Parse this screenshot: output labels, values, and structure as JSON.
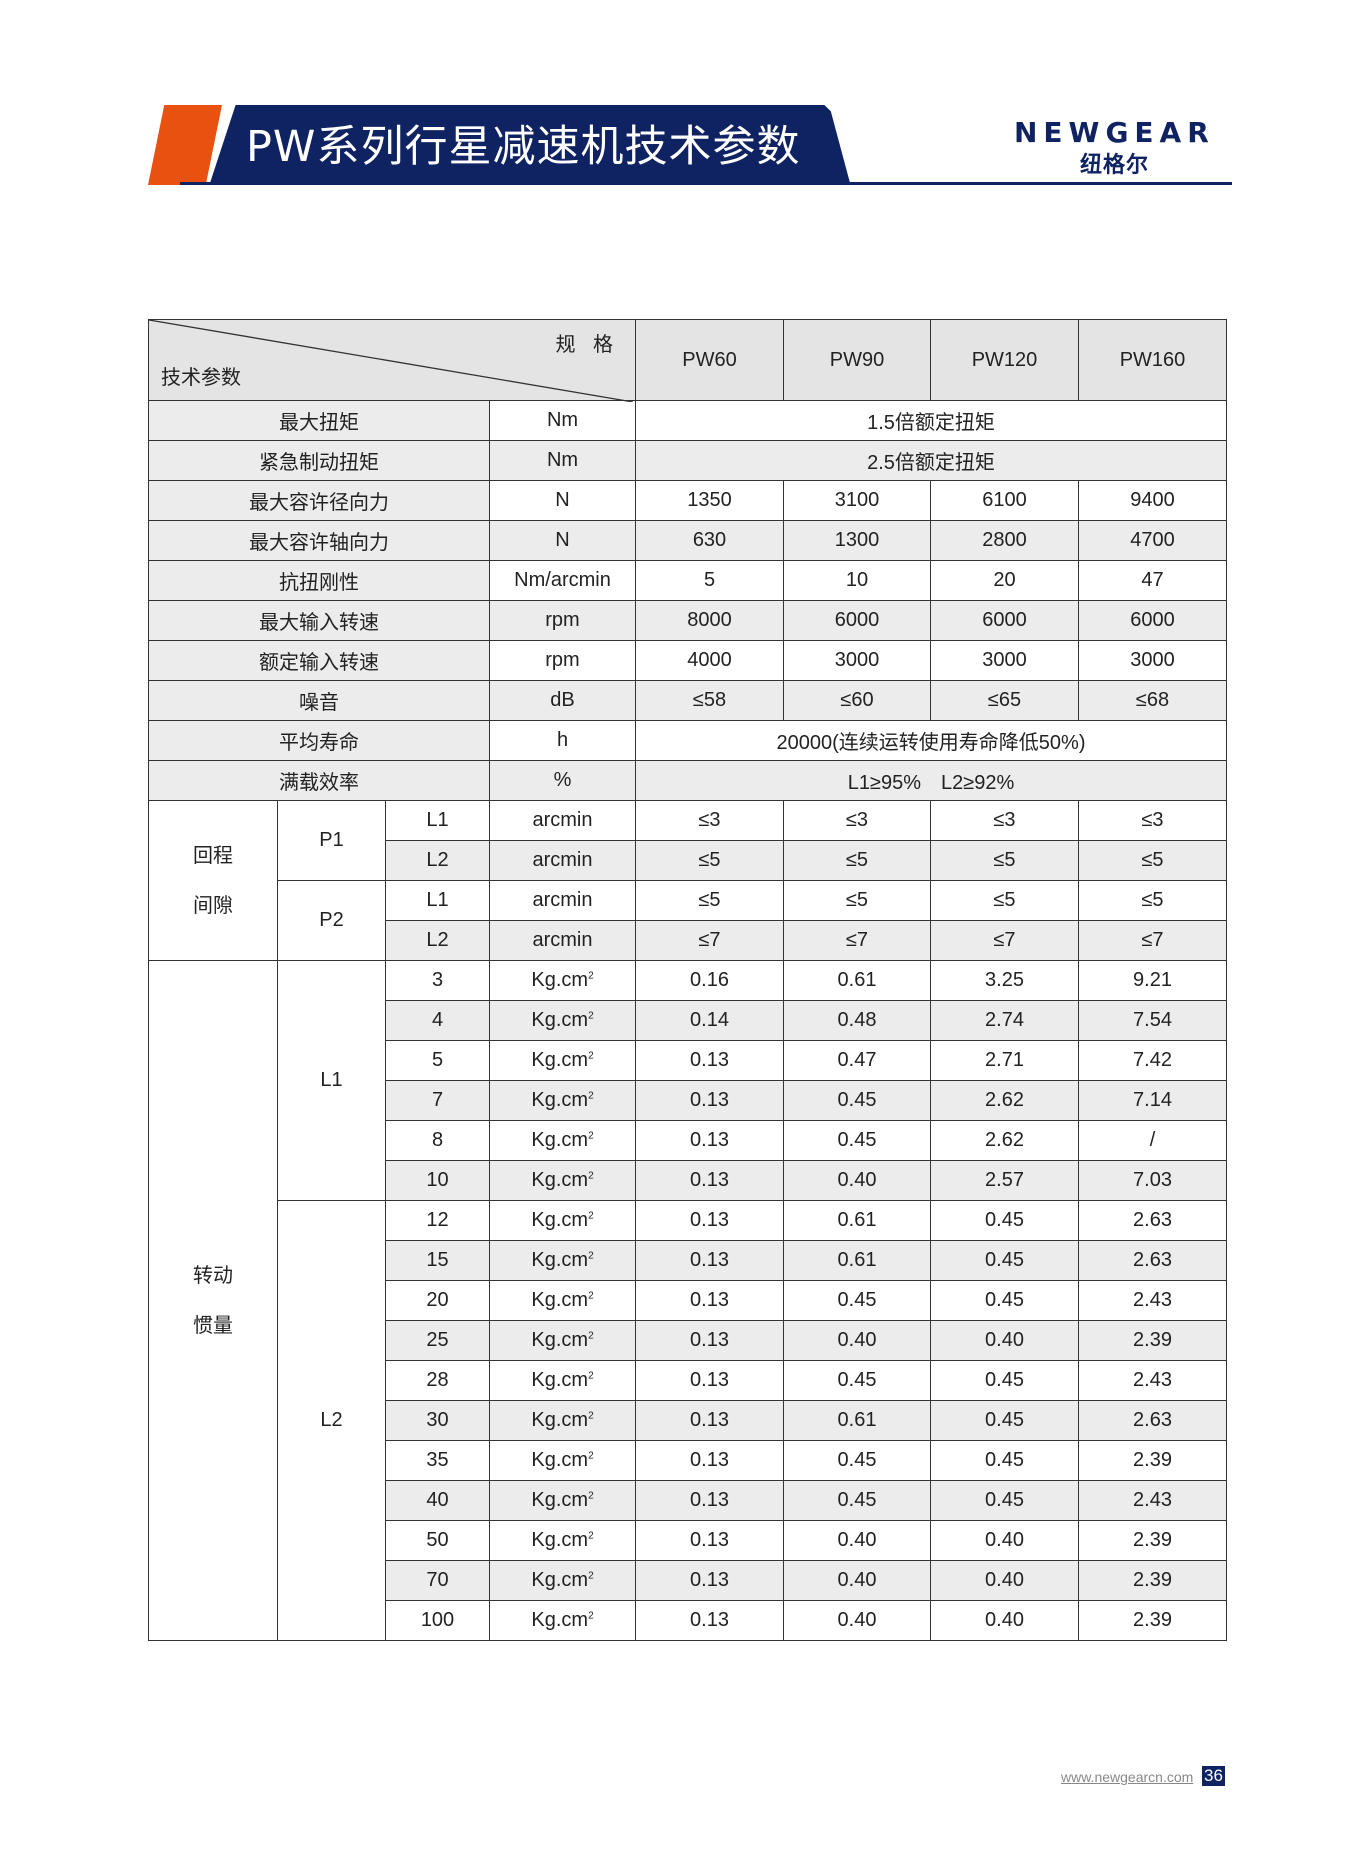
{
  "header": {
    "title": "PW系列行星减速机技术参数",
    "logo_en": "NEWGEAR",
    "logo_cn": "纽格尔",
    "accent": "#e8510f",
    "brand": "#0f2262"
  },
  "table": {
    "corner_top": "规 格",
    "corner_bottom": "技术参数",
    "models": [
      "PW60",
      "PW90",
      "PW120",
      "PW160"
    ],
    "general_rows": [
      {
        "label": "最大扭矩",
        "unit": "Nm",
        "merged": "1.5倍额定扭矩"
      },
      {
        "label": "紧急制动扭矩",
        "unit": "Nm",
        "merged": "2.5倍额定扭矩"
      },
      {
        "label": "最大容许径向力",
        "unit": "N",
        "values": [
          "1350",
          "3100",
          "6100",
          "9400"
        ]
      },
      {
        "label": "最大容许轴向力",
        "unit": "N",
        "values": [
          "630",
          "1300",
          "2800",
          "4700"
        ]
      },
      {
        "label": "抗扭刚性",
        "unit": "Nm/arcmin",
        "values": [
          "5",
          "10",
          "20",
          "47"
        ]
      },
      {
        "label": "最大输入转速",
        "unit": "rpm",
        "values": [
          "8000",
          "6000",
          "6000",
          "6000"
        ]
      },
      {
        "label": "额定输入转速",
        "unit": "rpm",
        "values": [
          "4000",
          "3000",
          "3000",
          "3000"
        ]
      },
      {
        "label": "噪音",
        "unit": "dB",
        "values": [
          "≤58",
          "≤60",
          "≤65",
          "≤68"
        ]
      },
      {
        "label": "平均寿命",
        "unit": "h",
        "merged": "20000(连续运转使用寿命降低50%)"
      },
      {
        "label": "满载效率",
        "unit": "%",
        "merged": "L1≥95%　L2≥92%"
      }
    ],
    "backlash": {
      "label_line1": "回程",
      "label_line2": "间隙",
      "groups": [
        {
          "name": "P1",
          "rows": [
            {
              "stage": "L1",
              "unit": "arcmin",
              "values": [
                "≤3",
                "≤3",
                "≤3",
                "≤3"
              ]
            },
            {
              "stage": "L2",
              "unit": "arcmin",
              "values": [
                "≤5",
                "≤5",
                "≤5",
                "≤5"
              ]
            }
          ]
        },
        {
          "name": "P2",
          "rows": [
            {
              "stage": "L1",
              "unit": "arcmin",
              "values": [
                "≤5",
                "≤5",
                "≤5",
                "≤5"
              ]
            },
            {
              "stage": "L2",
              "unit": "arcmin",
              "values": [
                "≤7",
                "≤7",
                "≤7",
                "≤7"
              ]
            }
          ]
        }
      ]
    },
    "inertia": {
      "label_line1": "转动",
      "label_line2": "惯量",
      "unit": "Kg.cm",
      "unit_sup": "2",
      "groups": [
        {
          "name": "L1",
          "rows": [
            {
              "ratio": "3",
              "values": [
                "0.16",
                "0.61",
                "3.25",
                "9.21"
              ]
            },
            {
              "ratio": "4",
              "values": [
                "0.14",
                "0.48",
                "2.74",
                "7.54"
              ]
            },
            {
              "ratio": "5",
              "values": [
                "0.13",
                "0.47",
                "2.71",
                "7.42"
              ]
            },
            {
              "ratio": "7",
              "values": [
                "0.13",
                "0.45",
                "2.62",
                "7.14"
              ]
            },
            {
              "ratio": "8",
              "values": [
                "0.13",
                "0.45",
                "2.62",
                "/"
              ]
            },
            {
              "ratio": "10",
              "values": [
                "0.13",
                "0.40",
                "2.57",
                "7.03"
              ]
            }
          ]
        },
        {
          "name": "L2",
          "rows": [
            {
              "ratio": "12",
              "values": [
                "0.13",
                "0.61",
                "0.45",
                "2.63"
              ]
            },
            {
              "ratio": "15",
              "values": [
                "0.13",
                "0.61",
                "0.45",
                "2.63"
              ]
            },
            {
              "ratio": "20",
              "values": [
                "0.13",
                "0.45",
                "0.45",
                "2.43"
              ]
            },
            {
              "ratio": "25",
              "values": [
                "0.13",
                "0.40",
                "0.40",
                "2.39"
              ]
            },
            {
              "ratio": "28",
              "values": [
                "0.13",
                "0.45",
                "0.45",
                "2.43"
              ]
            },
            {
              "ratio": "30",
              "values": [
                "0.13",
                "0.61",
                "0.45",
                "2.63"
              ]
            },
            {
              "ratio": "35",
              "values": [
                "0.13",
                "0.45",
                "0.45",
                "2.39"
              ]
            },
            {
              "ratio": "40",
              "values": [
                "0.13",
                "0.45",
                "0.45",
                "2.43"
              ]
            },
            {
              "ratio": "50",
              "values": [
                "0.13",
                "0.40",
                "0.40",
                "2.39"
              ]
            },
            {
              "ratio": "70",
              "values": [
                "0.13",
                "0.40",
                "0.40",
                "2.39"
              ]
            },
            {
              "ratio": "100",
              "values": [
                "0.13",
                "0.40",
                "0.40",
                "2.39"
              ]
            }
          ]
        }
      ]
    }
  },
  "footer": {
    "url": "www.newgearcn.com",
    "page": "36"
  }
}
